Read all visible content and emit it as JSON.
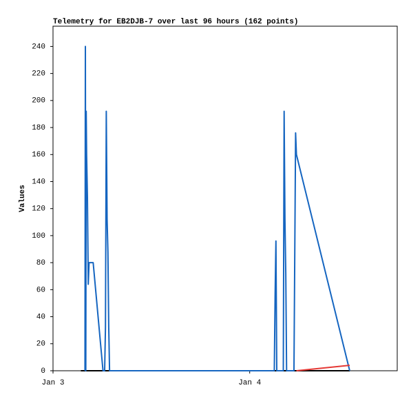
{
  "chart_data": {
    "type": "line",
    "title": "Telemetry for EB2DJB-7 over last 96 hours (162 points)",
    "y_label": "Values",
    "xlim": [
      0,
      42
    ],
    "xticks": [
      {
        "value": 0,
        "label": "Jan 3"
      },
      {
        "value": 24,
        "label": "Jan 4"
      }
    ],
    "ylim": [
      0,
      255
    ],
    "yticks": [
      0,
      20,
      40,
      60,
      80,
      100,
      120,
      140,
      160,
      180,
      200,
      220,
      240
    ],
    "grid": false,
    "series": [
      {
        "color": "#000000",
        "x": [
          3.4,
          36.2
        ],
        "values": [
          0,
          0
        ]
      },
      {
        "color": "#1565c0",
        "x": [
          3.9,
          3.95,
          4.0,
          4.05,
          4.1,
          4.2,
          4.3,
          4.4,
          4.5,
          4.6,
          4.9,
          6.1,
          6.3,
          6.4,
          6.5,
          6.6,
          6.7,
          6.8,
          6.9,
          7.0,
          27.0,
          27.1,
          27.2,
          27.3,
          28.1,
          28.2,
          28.3,
          28.4,
          28.5,
          29.4,
          29.5,
          29.6,
          29.7,
          36.2
        ],
        "values": [
          0,
          240,
          0,
          192,
          160,
          128,
          64,
          80,
          80,
          80,
          80,
          0,
          0,
          32,
          192,
          112,
          88,
          32,
          0,
          0,
          0,
          56,
          96,
          0,
          0,
          192,
          112,
          72,
          0,
          0,
          88,
          176,
          160,
          0
        ]
      },
      {
        "color": "#e53935",
        "x": [
          29.7,
          36.2
        ],
        "values": [
          0,
          4
        ]
      }
    ]
  }
}
